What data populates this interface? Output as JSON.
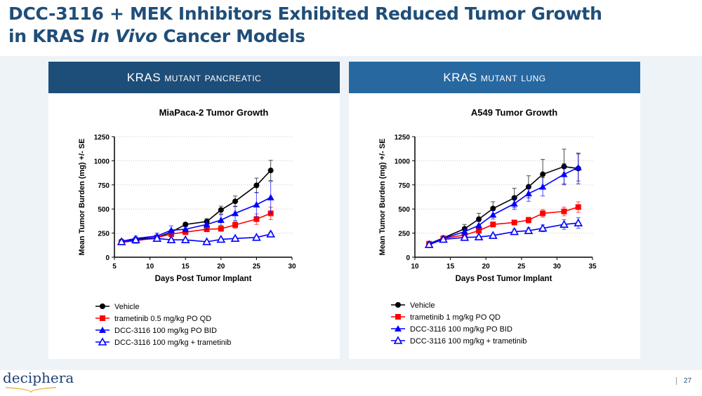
{
  "slide": {
    "title_line1": "DCC-3116 + MEK Inhibitors Exhibited Reduced Tumor Growth",
    "title_line2_a": "in KRAS ",
    "title_line2_b": "In Vivo",
    "title_line2_c": " Cancer Models",
    "logo": "deciphera",
    "page": "27"
  },
  "panels": [
    {
      "header": "KRAS mutant pancreatic"
    },
    {
      "header": "KRAS mutant lung"
    }
  ],
  "colors": {
    "header_left": "#1d4d79",
    "header_right": "#2768a0",
    "vehicle": "#000000",
    "trametinib": "#ff0000",
    "dcc": "#0000ff"
  },
  "chart_data": [
    {
      "type": "line",
      "title": "MiaPaca-2 Tumor Growth",
      "xlabel": "Days Post Tumor Implant",
      "ylabel": "Mean Tumor Burden (mg) +/- SE",
      "xlim": [
        5,
        30
      ],
      "ylim": [
        0,
        1250
      ],
      "xticks": [
        5,
        10,
        15,
        20,
        25,
        30
      ],
      "yticks": [
        0,
        250,
        500,
        750,
        1000,
        1250
      ],
      "legend": "bottom",
      "x": [
        6,
        8,
        11,
        13,
        15,
        18,
        20,
        22,
        25,
        27
      ],
      "series": [
        {
          "name": "Vehicle",
          "marker": "circle",
          "values": [
            165,
            185,
            205,
            260,
            340,
            370,
            490,
            580,
            745,
            900
          ],
          "se": [
            15,
            20,
            20,
            25,
            20,
            30,
            40,
            55,
            75,
            105
          ]
        },
        {
          "name": "trametinib 0.5 mg/kg PO QD",
          "marker": "square",
          "values": [
            155,
            170,
            205,
            240,
            260,
            290,
            295,
            335,
            395,
            455
          ],
          "se": [
            10,
            15,
            15,
            20,
            20,
            25,
            25,
            35,
            55,
            65
          ]
        },
        {
          "name": "DCC-3116 100 mg/kg PO BID",
          "marker": "triangle",
          "values": [
            165,
            195,
            220,
            280,
            290,
            340,
            385,
            455,
            545,
            620
          ],
          "se": [
            15,
            25,
            30,
            45,
            25,
            50,
            55,
            75,
            125,
            165
          ]
        },
        {
          "name": "DCC-3116 100 mg/kg + trametinib",
          "marker": "triangle-open",
          "values": [
            160,
            180,
            195,
            180,
            180,
            160,
            185,
            195,
            205,
            240
          ],
          "se": [
            10,
            10,
            15,
            15,
            10,
            10,
            15,
            15,
            15,
            20
          ]
        }
      ]
    },
    {
      "type": "line",
      "title": "A549 Tumor Growth",
      "xlabel": "Days Post Tumor Implant",
      "ylabel": "Mean Tumor Burden (mg) +/- SE",
      "xlim": [
        10,
        35
      ],
      "ylim": [
        0,
        1250
      ],
      "xticks": [
        10,
        15,
        20,
        25,
        30,
        35
      ],
      "yticks": [
        0,
        250,
        500,
        750,
        1000,
        1250
      ],
      "legend": "bottom",
      "x": [
        12,
        14,
        17,
        19,
        21,
        24,
        26,
        28,
        31,
        33
      ],
      "series": [
        {
          "name": "Vehicle",
          "marker": "circle",
          "values": [
            140,
            200,
            295,
            395,
            505,
            615,
            730,
            860,
            940,
            920
          ],
          "se": [
            15,
            15,
            45,
            60,
            70,
            100,
            115,
            155,
            180,
            160
          ]
        },
        {
          "name": "trametinib 1 mg/kg PO QD",
          "marker": "square",
          "values": [
            140,
            195,
            230,
            275,
            340,
            360,
            385,
            455,
            475,
            520
          ],
          "se": [
            10,
            15,
            20,
            25,
            25,
            25,
            30,
            40,
            45,
            55
          ]
        },
        {
          "name": "DCC-3116 100 mg/kg PO BID",
          "marker": "triangle",
          "values": [
            140,
            195,
            265,
            330,
            440,
            555,
            660,
            730,
            860,
            930
          ],
          "se": [
            10,
            15,
            30,
            40,
            45,
            60,
            80,
            95,
            110,
            140
          ]
        },
        {
          "name": "DCC-3116 100 mg/kg + trametinib",
          "marker": "triangle-open",
          "values": [
            130,
            185,
            205,
            210,
            225,
            265,
            275,
            300,
            340,
            355
          ],
          "se": [
            10,
            10,
            15,
            15,
            15,
            25,
            30,
            35,
            50,
            55
          ]
        }
      ]
    }
  ]
}
